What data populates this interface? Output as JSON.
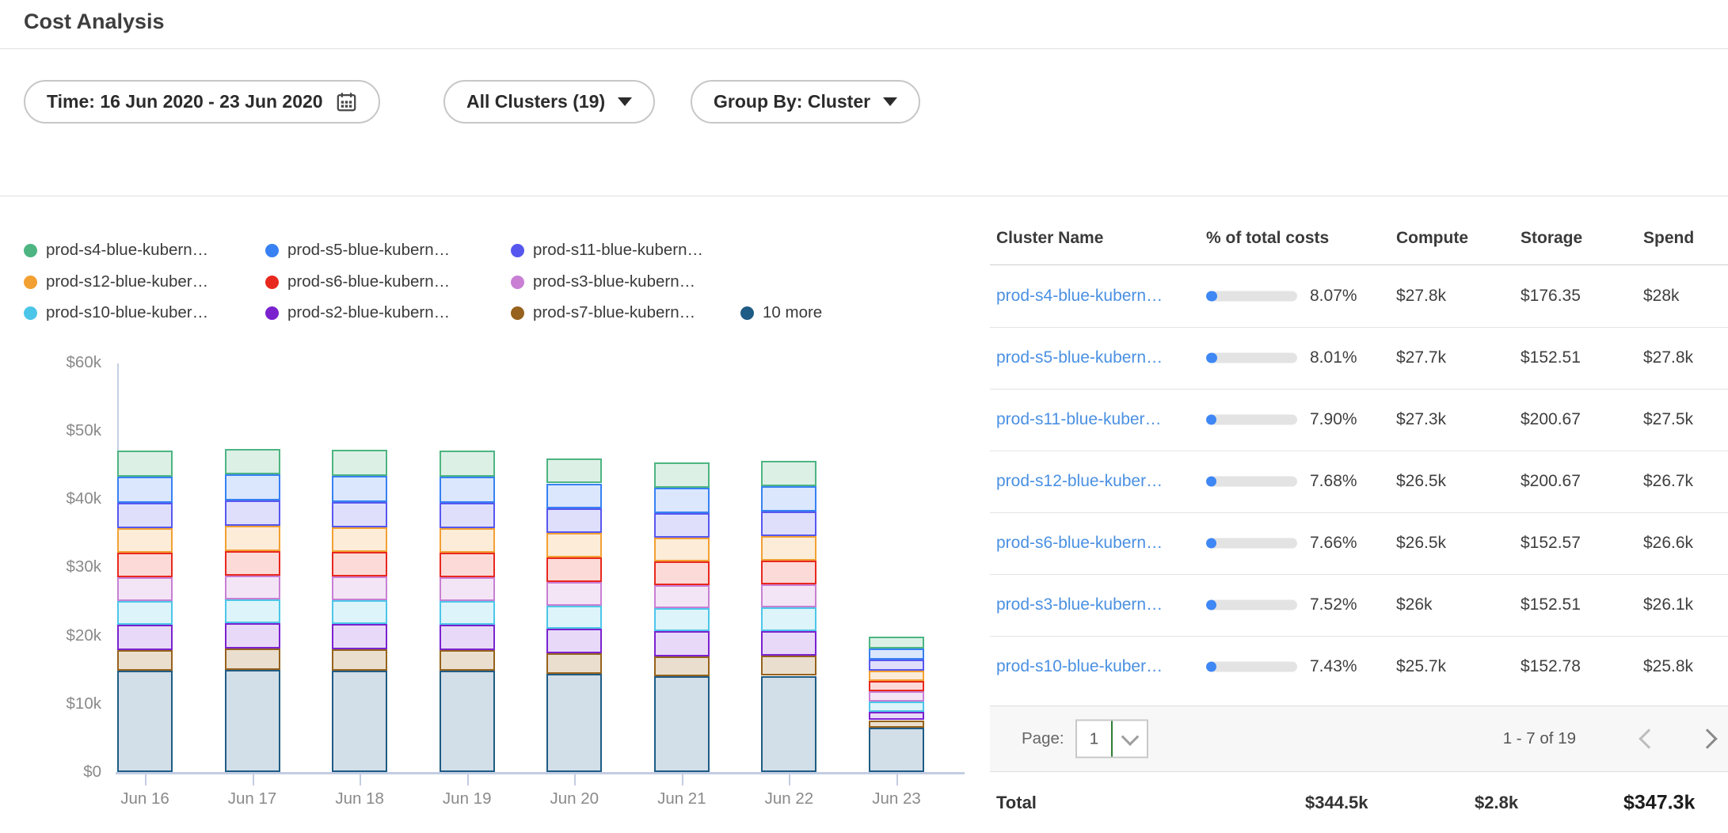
{
  "header": {
    "title": "Cost Analysis"
  },
  "filters": {
    "time_label": "Time: 16 Jun 2020 - 23 Jun 2020",
    "clusters_label": "All Clusters (19)",
    "group_by_label": "Group By: Cluster"
  },
  "chart_data": {
    "type": "bar",
    "stacked": true,
    "stack_note": "series listed top-of-stack first; rendered bottom-up in reverse order",
    "categories": [
      "Jun 16",
      "Jun 17",
      "Jun 18",
      "Jun 19",
      "Jun 20",
      "Jun 21",
      "Jun 22",
      "Jun 23"
    ],
    "y_ticks": [
      "$0",
      "$10k",
      "$20k",
      "$30k",
      "$40k",
      "$50k",
      "$60k"
    ],
    "ylim_k": [
      0,
      60
    ],
    "unit": "USD thousands per day",
    "grid": false,
    "legend_position": "top",
    "series": [
      {
        "name": "prod-s4-blue-kubern…",
        "color": "#4db582",
        "fill": "#ddf0e6",
        "values": [
          3.8,
          3.8,
          3.8,
          3.8,
          3.7,
          3.7,
          3.7,
          1.7
        ]
      },
      {
        "name": "prod-s5-blue-kubern…",
        "color": "#3781f3",
        "fill": "#dae7fd",
        "values": [
          3.8,
          3.8,
          3.8,
          3.8,
          3.7,
          3.7,
          3.7,
          1.6
        ]
      },
      {
        "name": "prod-s11-blue-kubern…",
        "color": "#5757ef",
        "fill": "#dfdffc",
        "values": [
          3.7,
          3.7,
          3.7,
          3.7,
          3.6,
          3.6,
          3.6,
          1.6
        ]
      },
      {
        "name": "prod-s12-blue-kuber…",
        "color": "#f2a032",
        "fill": "#fcecd8",
        "values": [
          3.6,
          3.7,
          3.6,
          3.6,
          3.6,
          3.5,
          3.6,
          1.6
        ]
      },
      {
        "name": "prod-s6-blue-kubern…",
        "color": "#e8281e",
        "fill": "#fbdad8",
        "values": [
          3.6,
          3.6,
          3.6,
          3.6,
          3.5,
          3.5,
          3.5,
          1.5
        ]
      },
      {
        "name": "prod-s3-blue-kubern…",
        "color": "#c87fd4",
        "fill": "#f4e5f6",
        "values": [
          3.5,
          3.5,
          3.5,
          3.5,
          3.5,
          3.4,
          3.4,
          1.5
        ]
      },
      {
        "name": "prod-s10-blue-kuber…",
        "color": "#4cc6e8",
        "fill": "#ddf4fb",
        "values": [
          3.5,
          3.5,
          3.5,
          3.5,
          3.4,
          3.4,
          3.4,
          1.5
        ]
      },
      {
        "name": "prod-s2-blue-kubern…",
        "color": "#7b22cf",
        "fill": "#e9d9f8",
        "values": [
          3.7,
          3.7,
          3.7,
          3.7,
          3.6,
          3.6,
          3.6,
          1.2
        ]
      },
      {
        "name": "prod-s7-blue-kubern…",
        "color": "#96621d",
        "fill": "#eadfce",
        "values": [
          3.1,
          3.1,
          3.1,
          3.1,
          3.0,
          3.0,
          3.0,
          1.1
        ]
      },
      {
        "name": "10 more",
        "color": "#1f5c85",
        "fill": "#d2dee8",
        "values": [
          14.8,
          15.0,
          14.9,
          14.8,
          14.4,
          14.0,
          14.1,
          6.5
        ]
      }
    ]
  },
  "table": {
    "columns": [
      "Cluster Name",
      "% of total costs",
      "Compute",
      "Storage",
      "Spend"
    ],
    "rows": [
      {
        "name": "prod-s4-blue-kubern…",
        "pct_value": 8.07,
        "pct": "8.07%",
        "compute": "$27.8k",
        "storage": "$176.35",
        "spend": "$28k"
      },
      {
        "name": "prod-s5-blue-kubern…",
        "pct_value": 8.01,
        "pct": "8.01%",
        "compute": "$27.7k",
        "storage": "$152.51",
        "spend": "$27.8k"
      },
      {
        "name": "prod-s11-blue-kuber…",
        "pct_value": 7.9,
        "pct": "7.90%",
        "compute": "$27.3k",
        "storage": "$200.67",
        "spend": "$27.5k"
      },
      {
        "name": "prod-s12-blue-kuber…",
        "pct_value": 7.68,
        "pct": "7.68%",
        "compute": "$26.5k",
        "storage": "$200.67",
        "spend": "$26.7k"
      },
      {
        "name": "prod-s6-blue-kubern…",
        "pct_value": 7.66,
        "pct": "7.66%",
        "compute": "$26.5k",
        "storage": "$152.57",
        "spend": "$26.6k"
      },
      {
        "name": "prod-s3-blue-kubern…",
        "pct_value": 7.52,
        "pct": "7.52%",
        "compute": "$26k",
        "storage": "$152.51",
        "spend": "$26.1k"
      },
      {
        "name": "prod-s10-blue-kuber…",
        "pct_value": 7.43,
        "pct": "7.43%",
        "compute": "$25.7k",
        "storage": "$152.78",
        "spend": "$25.8k"
      }
    ],
    "pagination": {
      "label": "Page:",
      "value": "1",
      "range": "1 - 7 of 19"
    },
    "total": {
      "label": "Total",
      "compute": "$344.5k",
      "storage": "$2.8k",
      "spend": "$347.3k"
    }
  },
  "colors": {
    "link": "#4a90e2",
    "pct_fill": "#3e87f5",
    "axis": "#c3cde2",
    "page_select_divider": "#2f7d33"
  }
}
